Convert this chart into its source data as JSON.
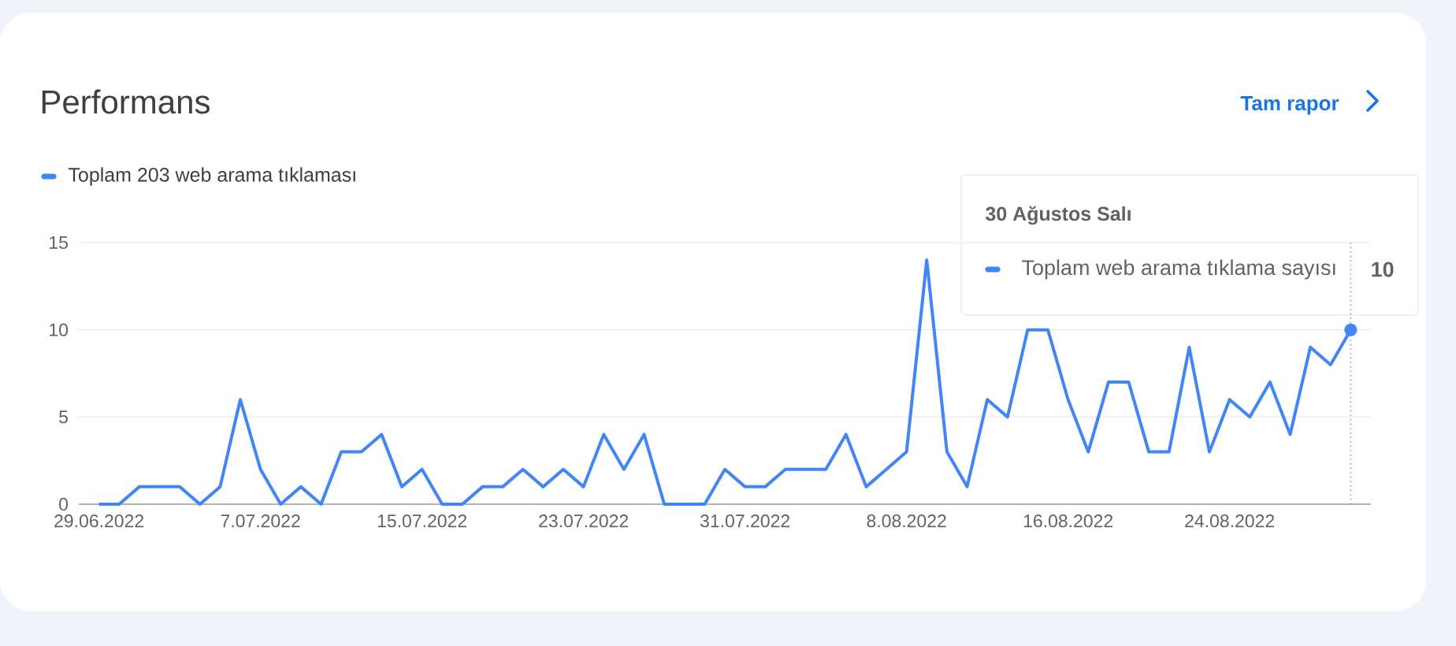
{
  "chart_data": {
    "type": "line",
    "title": "Performans",
    "annotations": [
      "Tam rapor",
      "30 Ağustos Salı",
      "Toplam web arama tıklama sayısı",
      {
        "text": "10",
        "x": "2022-08-30",
        "y": 10
      }
    ],
    "x": [
      "2022-06-29",
      "2022-06-30",
      "2022-07-01",
      "2022-07-02",
      "2022-07-03",
      "2022-07-04",
      "2022-07-05",
      "2022-07-06",
      "2022-07-07",
      "2022-07-08",
      "2022-07-09",
      "2022-07-10",
      "2022-07-11",
      "2022-07-12",
      "2022-07-13",
      "2022-07-14",
      "2022-07-15",
      "2022-07-16",
      "2022-07-17",
      "2022-07-18",
      "2022-07-19",
      "2022-07-20",
      "2022-07-21",
      "2022-07-22",
      "2022-07-23",
      "2022-07-24",
      "2022-07-25",
      "2022-07-26",
      "2022-07-27",
      "2022-07-28",
      "2022-07-29",
      "2022-07-30",
      "2022-07-31",
      "2022-08-01",
      "2022-08-02",
      "2022-08-03",
      "2022-08-04",
      "2022-08-05",
      "2022-08-06",
      "2022-08-07",
      "2022-08-08",
      "2022-08-09",
      "2022-08-10",
      "2022-08-11",
      "2022-08-12",
      "2022-08-13",
      "2022-08-14",
      "2022-08-15",
      "2022-08-16",
      "2022-08-17",
      "2022-08-18",
      "2022-08-19",
      "2022-08-20",
      "2022-08-21",
      "2022-08-22",
      "2022-08-23",
      "2022-08-24",
      "2022-08-25",
      "2022-08-26",
      "2022-08-27",
      "2022-08-28",
      "2022-08-29",
      "2022-08-30"
    ],
    "series": [
      {
        "name": "Toplam 203 web arama tıklaması",
        "color": "#4285f4",
        "values": [
          0,
          0,
          1,
          1,
          1,
          0,
          1,
          6,
          2,
          0,
          1,
          0,
          3,
          3,
          4,
          1,
          2,
          0,
          0,
          1,
          1,
          2,
          1,
          2,
          1,
          4,
          2,
          4,
          0,
          0,
          0,
          2,
          1,
          1,
          2,
          2,
          2,
          4,
          1,
          2,
          3,
          14,
          3,
          1,
          6,
          5,
          10,
          10,
          6,
          3,
          7,
          7,
          3,
          3,
          9,
          3,
          6,
          5,
          7,
          4,
          9,
          8,
          10
        ]
      }
    ],
    "xlim": [
      "2022-06-28",
      "2022-08-31"
    ],
    "xticks": [
      {
        "value": "2022-06-29",
        "label": "29.06.2022"
      },
      {
        "value": "2022-07-07",
        "label": "7.07.2022"
      },
      {
        "value": "2022-07-15",
        "label": "15.07.2022"
      },
      {
        "value": "2022-07-23",
        "label": "23.07.2022"
      },
      {
        "value": "2022-07-31",
        "label": "31.07.2022"
      },
      {
        "value": "2022-08-08",
        "label": "8.08.2022"
      },
      {
        "value": "2022-08-16",
        "label": "16.08.2022"
      },
      {
        "value": "2022-08-24",
        "label": "24.08.2022"
      }
    ],
    "ylim": [
      0,
      15
    ],
    "yticks": [
      0,
      5,
      10,
      15
    ],
    "grid": "y",
    "legend": "top left",
    "marker": "none",
    "line_style": "solid",
    "ref_lines": [
      {
        "axis": "x",
        "value": "2022-08-30",
        "color": "#9e9e9e",
        "line_style": "dotted"
      }
    ]
  }
}
